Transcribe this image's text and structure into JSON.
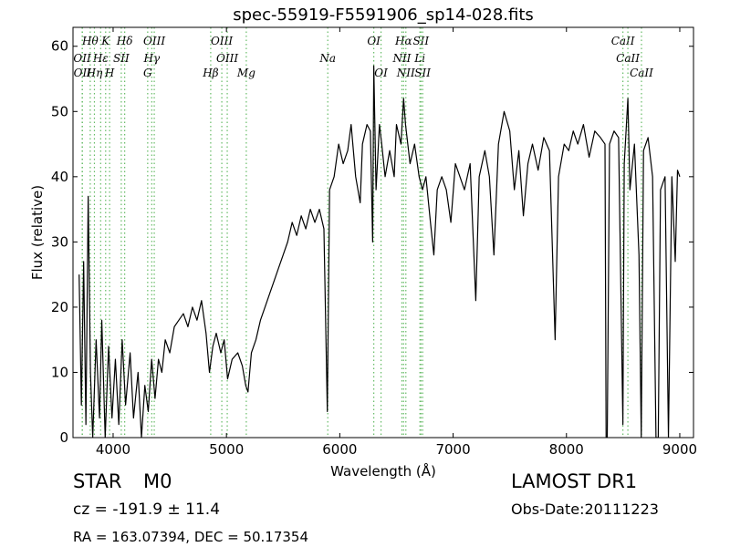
{
  "chart_data": {
    "type": "line",
    "title": "spec-55919-F5591906_sp14-028.fits",
    "x_label": "Wavelength (Å)",
    "y_label": "Flux (relative)",
    "xlim": [
      3646,
      9121
    ],
    "ylim": [
      0,
      62.9
    ],
    "xticks": [
      4000,
      5000,
      6000,
      7000,
      8000,
      9000
    ],
    "yticks": [
      0,
      10,
      20,
      30,
      40,
      50,
      60
    ],
    "grid": false,
    "color": "#000000",
    "line_color": "#66bb66",
    "x": [
      3700,
      3720,
      3740,
      3760,
      3780,
      3800,
      3820,
      3850,
      3880,
      3900,
      3930,
      3960,
      3990,
      4020,
      4050,
      4080,
      4110,
      4150,
      4180,
      4220,
      4250,
      4280,
      4310,
      4340,
      4370,
      4400,
      4430,
      4460,
      4500,
      4540,
      4580,
      4620,
      4660,
      4700,
      4740,
      4780,
      4820,
      4850,
      4880,
      4910,
      4950,
      4980,
      5010,
      5050,
      5100,
      5140,
      5170,
      5190,
      5220,
      5260,
      5300,
      5340,
      5380,
      5420,
      5460,
      5500,
      5540,
      5580,
      5620,
      5660,
      5700,
      5740,
      5780,
      5820,
      5860,
      5890,
      5910,
      5950,
      5990,
      6030,
      6070,
      6100,
      6140,
      6180,
      6200,
      6240,
      6270,
      6290,
      6300,
      6320,
      6350,
      6370,
      6400,
      6440,
      6480,
      6500,
      6540,
      6563,
      6580,
      6620,
      6660,
      6700,
      6730,
      6760,
      6800,
      6830,
      6860,
      6900,
      6940,
      6980,
      7020,
      7060,
      7100,
      7150,
      7200,
      7230,
      7280,
      7320,
      7360,
      7400,
      7450,
      7500,
      7540,
      7580,
      7620,
      7660,
      7700,
      7750,
      7800,
      7850,
      7900,
      7930,
      7980,
      8020,
      8060,
      8100,
      8150,
      8200,
      8250,
      8300,
      8340,
      8350,
      8360,
      8380,
      8420,
      8460,
      8498,
      8510,
      8542,
      8560,
      8600,
      8640,
      8660,
      8680,
      8720,
      8760,
      8790,
      8810,
      8830,
      8870,
      8900,
      8930,
      8960,
      8980,
      9000
    ],
    "values": [
      25,
      5,
      27,
      2,
      37,
      10,
      0,
      15,
      3,
      18,
      0,
      14,
      3,
      12,
      2,
      15,
      5,
      13,
      3,
      10,
      0,
      8,
      4,
      12,
      6,
      12,
      10,
      15,
      13,
      17,
      18,
      19,
      17,
      20,
      18,
      21,
      16,
      10,
      14,
      16,
      13,
      15,
      9,
      12,
      13,
      11,
      8,
      7,
      13,
      15,
      18,
      20,
      22,
      24,
      26,
      28,
      30,
      33,
      31,
      34,
      32,
      35,
      33,
      35,
      32,
      4,
      38,
      40,
      45,
      42,
      44,
      48,
      40,
      36,
      45,
      48,
      47,
      30,
      57,
      38,
      48,
      45,
      40,
      44,
      40,
      48,
      45,
      52,
      48,
      42,
      45,
      40,
      38,
      40,
      33,
      28,
      38,
      40,
      38,
      33,
      42,
      40,
      38,
      42,
      21,
      40,
      44,
      40,
      28,
      45,
      50,
      47,
      38,
      44,
      34,
      42,
      45,
      41,
      46,
      44,
      15,
      40,
      45,
      44,
      47,
      45,
      48,
      43,
      47,
      46,
      45,
      0,
      0,
      45,
      47,
      46,
      2,
      42,
      52,
      38,
      45,
      28,
      0,
      44,
      46,
      40,
      0,
      0,
      38,
      40,
      0,
      40,
      27,
      41,
      40
    ],
    "spectral_lines": [
      [
        {
          "label": "Hθ",
          "wavelength": 3798
        },
        {
          "label": "K",
          "wavelength": 3934
        },
        {
          "label": "Hδ",
          "wavelength": 4102
        },
        {
          "label": "OIII",
          "wavelength": 4363
        },
        {
          "label": "OIII",
          "wavelength": 4959
        },
        {
          "label": "OI",
          "wavelength": 6300
        },
        {
          "label": "Hα",
          "wavelength": 6563
        },
        {
          "label": "SII",
          "wavelength": 6716
        },
        {
          "label": "CaII",
          "wavelength": 8498
        }
      ],
      [
        {
          "label": "OII",
          "wavelength": 3727
        },
        {
          "label": "Hε",
          "wavelength": 3890
        },
        {
          "label": "SII",
          "wavelength": 4072
        },
        {
          "label": "Hγ",
          "wavelength": 4341
        },
        {
          "label": "OIII",
          "wavelength": 5007
        },
        {
          "label": "Na",
          "wavelength": 5894
        },
        {
          "label": "NII",
          "wavelength": 6548
        },
        {
          "label": "Li",
          "wavelength": 6707
        },
        {
          "label": "CaII",
          "wavelength": 8542
        }
      ],
      [
        {
          "label": "OII",
          "wavelength": 3729
        },
        {
          "label": "Hη",
          "wavelength": 3835
        },
        {
          "label": "H",
          "wavelength": 3969
        },
        {
          "label": "G",
          "wavelength": 4305
        },
        {
          "label": "Hβ",
          "wavelength": 4861
        },
        {
          "label": "Mg",
          "wavelength": 5175
        },
        {
          "label": "OI",
          "wavelength": 6364
        },
        {
          "label": "NII",
          "wavelength": 6583
        },
        {
          "label": "SII",
          "wavelength": 6731
        },
        {
          "label": "CaII",
          "wavelength": 8662
        }
      ]
    ]
  },
  "footer": {
    "class": "STAR",
    "subclass": "M0",
    "redshift": "cz = -191.9 ± 11.4",
    "coords": "RA = 163.07394, DEC = 50.17354",
    "survey": "LAMOST DR1",
    "obs_date": "Obs-Date:20111223"
  }
}
